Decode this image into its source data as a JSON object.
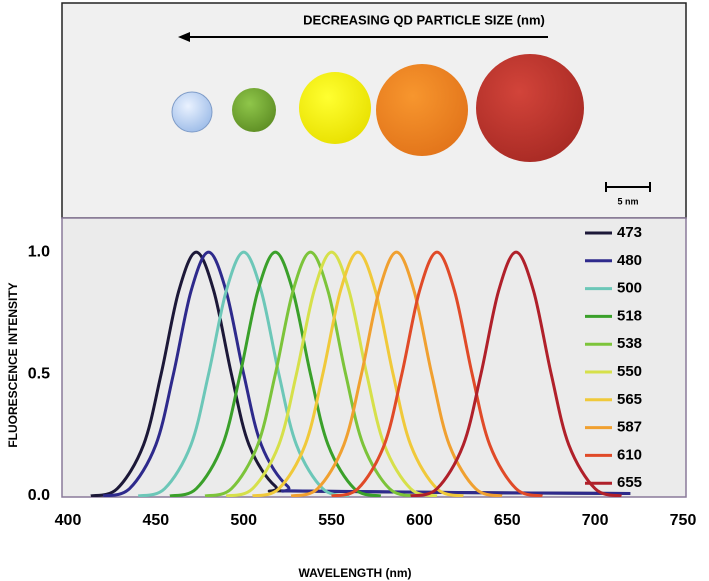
{
  "chart_data": {
    "type": "line",
    "annotations": [
      "DECREASING QD PARTICLE SIZE (nm)",
      "5 nm"
    ],
    "xlabel": "WAVELENGTH (nm)",
    "ylabel": "FLUORESCENCE   INTENSITY",
    "xlim": [
      400,
      750
    ],
    "xticks": [
      400,
      450,
      500,
      550,
      600,
      650,
      700,
      750
    ],
    "ylim": [
      0,
      1.14
    ],
    "yticks": [
      {
        "value": 0,
        "label": "0.0"
      },
      {
        "value": 0.5,
        "label": "0.5"
      },
      {
        "value": 1,
        "label": "1.0"
      }
    ],
    "grid": false,
    "legend": "upper right",
    "series": [
      {
        "name": "473",
        "color": "#1c1838",
        "x": [
          413,
          428,
          443,
          453,
          463,
          473,
          483,
          493,
          503,
          518,
          533,
          720
        ],
        "values": [
          0,
          0.03,
          0.21,
          0.5,
          0.84,
          1,
          0.84,
          0.5,
          0.21,
          0.04,
          0.02,
          0.01
        ]
      },
      {
        "name": "480",
        "color": "#2e2a8c",
        "x": [
          420,
          435,
          450,
          460,
          470,
          480,
          490,
          500,
          510,
          525,
          540,
          720
        ],
        "values": [
          0,
          0.03,
          0.21,
          0.5,
          0.84,
          1,
          0.84,
          0.5,
          0.21,
          0.04,
          0.02,
          0.01
        ]
      },
      {
        "name": "500",
        "color": "#6cc7b8",
        "x": [
          440,
          455,
          470,
          480,
          490,
          500,
          510,
          520,
          530,
          545,
          560
        ],
        "values": [
          0,
          0.03,
          0.21,
          0.5,
          0.84,
          1,
          0.84,
          0.5,
          0.21,
          0.03,
          0
        ]
      },
      {
        "name": "518",
        "color": "#3aa02a",
        "x": [
          458,
          473,
          488,
          498,
          508,
          518,
          528,
          538,
          548,
          563,
          578
        ],
        "values": [
          0,
          0.03,
          0.21,
          0.5,
          0.84,
          1,
          0.84,
          0.5,
          0.21,
          0.03,
          0
        ]
      },
      {
        "name": "538",
        "color": "#7cc43a",
        "x": [
          478,
          493,
          508,
          518,
          528,
          538,
          548,
          558,
          568,
          583,
          598
        ],
        "values": [
          0,
          0.03,
          0.21,
          0.5,
          0.84,
          1,
          0.84,
          0.5,
          0.21,
          0.03,
          0
        ]
      },
      {
        "name": "550",
        "color": "#d6e04a",
        "x": [
          490,
          505,
          520,
          530,
          540,
          550,
          560,
          570,
          580,
          595,
          610
        ],
        "values": [
          0,
          0.03,
          0.21,
          0.5,
          0.84,
          1,
          0.84,
          0.5,
          0.21,
          0.03,
          0
        ]
      },
      {
        "name": "565",
        "color": "#f0c93a",
        "x": [
          505,
          520,
          535,
          545,
          555,
          565,
          575,
          585,
          595,
          610,
          625
        ],
        "values": [
          0,
          0.03,
          0.21,
          0.5,
          0.84,
          1,
          0.84,
          0.5,
          0.21,
          0.03,
          0
        ]
      },
      {
        "name": "587",
        "color": "#f0a030",
        "x": [
          527,
          542,
          557,
          567,
          577,
          587,
          597,
          607,
          617,
          632,
          647
        ],
        "values": [
          0,
          0.03,
          0.21,
          0.5,
          0.84,
          1,
          0.84,
          0.5,
          0.21,
          0.03,
          0
        ]
      },
      {
        "name": "610",
        "color": "#e04a28",
        "x": [
          550,
          565,
          580,
          590,
          600,
          610,
          620,
          630,
          640,
          655,
          670
        ],
        "values": [
          0,
          0.03,
          0.21,
          0.5,
          0.84,
          1,
          0.84,
          0.5,
          0.21,
          0.03,
          0
        ]
      },
      {
        "name": "655",
        "color": "#b0202a",
        "x": [
          595,
          610,
          625,
          635,
          645,
          655,
          665,
          675,
          685,
          700,
          715
        ],
        "values": [
          0,
          0.03,
          0.21,
          0.5,
          0.84,
          1,
          0.84,
          0.5,
          0.21,
          0.03,
          0
        ]
      }
    ]
  }
}
